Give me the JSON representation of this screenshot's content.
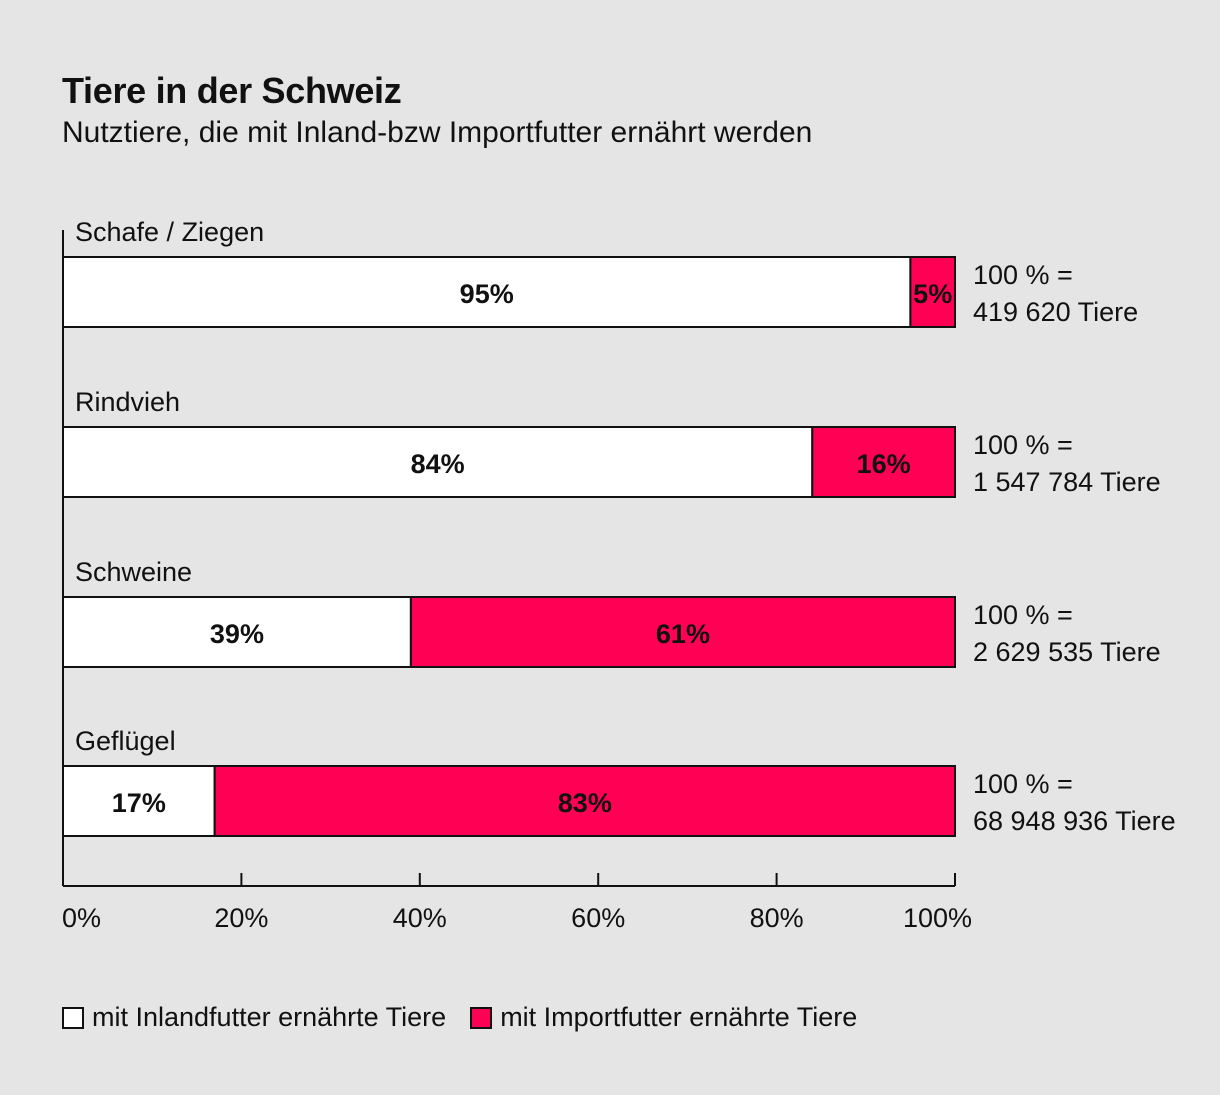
{
  "chart_data": {
    "type": "bar",
    "orientation": "horizontal",
    "stacked": true,
    "title": "Tiere in der Schweiz",
    "subtitle": "Nutztiere, die mit Inland-bzw Importfutter ernährt werden",
    "categories": [
      "Schafe / Ziegen",
      "Rindvieh",
      "Schweine",
      "Geflügel"
    ],
    "series": [
      {
        "name": "mit Inlandfutter ernährte Tiere",
        "color": "#ffffff",
        "values": [
          95,
          84,
          39,
          17
        ]
      },
      {
        "name": "mit Importfutter ernährte Tiere",
        "color": "#ff0055",
        "values": [
          5,
          16,
          61,
          83
        ]
      }
    ],
    "data_labels": [
      [
        "95%",
        "84%",
        "39%",
        "17%"
      ],
      [
        "5%",
        "16%",
        "61%",
        "83%"
      ]
    ],
    "totals_line1": [
      "100 % =",
      "100 % =",
      "100 % =",
      "100 % ="
    ],
    "totals_line2": [
      "419 620 Tiere",
      "1 547 784 Tiere",
      "2 629 535 Tiere",
      "68 948 936 Tiere"
    ],
    "xlim": [
      0,
      100
    ],
    "xticks": [
      0,
      20,
      40,
      60,
      80,
      100
    ],
    "xtick_labels": [
      "0%",
      "20%",
      "40%",
      "60%",
      "80%",
      "100%"
    ],
    "xlabel": "",
    "ylabel": "",
    "grid": false,
    "legend_position": "bottom-left"
  }
}
